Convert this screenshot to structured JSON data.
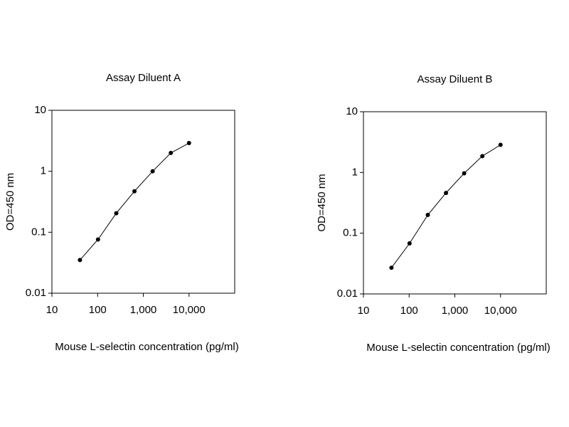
{
  "chart_data": [
    {
      "type": "line",
      "title": "Assay Diluent A",
      "xlabel": "Mouse L-selectin concentration (pg/ml)",
      "ylabel": "OD=450 nm",
      "x": [
        41,
        102,
        256,
        640,
        1600,
        4000,
        10000
      ],
      "values": [
        0.035,
        0.076,
        0.205,
        0.47,
        1.0,
        2.0,
        2.9
      ],
      "color": "#000000",
      "xscale": "log",
      "yscale": "log",
      "xlim": [
        10,
        100000
      ],
      "ylim": [
        0.01,
        10
      ],
      "xticks": [
        10,
        100,
        {
          "value": 1000,
          "label": "1,000"
        },
        {
          "value": 10000,
          "label": "10,000"
        }
      ],
      "yticks": [
        0.01,
        0.1,
        1,
        10
      ]
    },
    {
      "type": "line",
      "title": "Assay Diluent B",
      "xlabel": "Mouse L-selectin concentration (pg/ml)",
      "ylabel": "OD=450 nm",
      "x": [
        41,
        102,
        256,
        640,
        1600,
        4000,
        10000
      ],
      "values": [
        0.027,
        0.068,
        0.2,
        0.46,
        0.97,
        1.86,
        2.85
      ],
      "color": "#000000",
      "xscale": "log",
      "yscale": "log",
      "xlim": [
        10,
        100000
      ],
      "ylim": [
        0.01,
        10
      ],
      "xticks": [
        10,
        100,
        {
          "value": 1000,
          "label": "1,000"
        },
        {
          "value": 10000,
          "label": "10,000"
        }
      ],
      "yticks": [
        0.01,
        0.1,
        1,
        10
      ]
    }
  ]
}
